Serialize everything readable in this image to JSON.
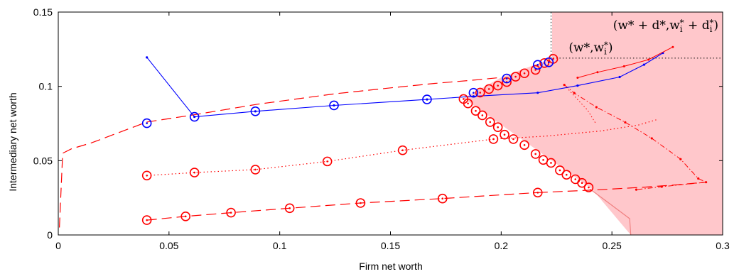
{
  "chart_data": {
    "type": "line",
    "title": "",
    "xlabel": "Firm net worth",
    "ylabel": "Intermediary net worth",
    "xlim": [
      0,
      0.3
    ],
    "ylim": [
      0,
      0.15
    ],
    "xticks": [
      0,
      0.05,
      0.1,
      0.15,
      0.2,
      0.25,
      0.3
    ],
    "yticks": [
      0,
      0.05,
      0.1,
      0.15
    ],
    "xtick_labels": [
      "0",
      "0.05",
      "0.1",
      "0.15",
      "0.2",
      "0.25",
      "0.3"
    ],
    "ytick_labels": [
      "0",
      "0.05",
      "0.1",
      "0.15"
    ],
    "grid": false,
    "legend": "none",
    "colors": {
      "red": "#ff0000",
      "blue": "#0000ff",
      "shade": "#ffc7cb",
      "black": "#000000"
    },
    "shaded_region": {
      "x": [
        0.223,
        0.3,
        0.3,
        0.2585,
        0.241,
        0.183,
        0.2,
        0.223
      ],
      "y": [
        0.15,
        0.15,
        0,
        0,
        0.031,
        0.092,
        0.106,
        0.119
      ]
    },
    "boundary_curve": {
      "x": [
        0.24,
        0.249,
        0.258,
        0.2585
      ],
      "y": [
        0.031,
        0.021,
        0.011,
        0
      ]
    },
    "dotted_guides": {
      "vertical": {
        "x": 0.2225,
        "y": [
          0.119,
          0.15
        ]
      },
      "horizontal": {
        "y": 0.119,
        "x": [
          0.222,
          0.3
        ]
      }
    },
    "dashed_upper_curve": {
      "x": [
        0.0005,
        0.002,
        0.006,
        0.015,
        0.04,
        0.062,
        0.09,
        0.125,
        0.15,
        0.17,
        0.19,
        0.2
      ],
      "y": [
        0.005,
        0.055,
        0.058,
        0.062,
        0.076,
        0.081,
        0.088,
        0.095,
        0.099,
        0.102,
        0.1045,
        0.106
      ]
    },
    "blue_circles": {
      "x": [
        0.04,
        0.0615,
        0.089,
        0.1245,
        0.1665,
        0.1875,
        0.2025,
        0.2165,
        0.2215
      ],
      "y": [
        0.0752,
        0.0795,
        0.0832,
        0.0872,
        0.0912,
        0.0957,
        0.1053,
        0.1145,
        0.1162
      ]
    },
    "blue_path": {
      "x": [
        0.04,
        0.0615,
        0.089,
        0.1245,
        0.1665,
        0.1875,
        0.2165,
        0.2345,
        0.2535,
        0.2645,
        0.273
      ],
      "y": [
        0.1195,
        0.0795,
        0.0832,
        0.0872,
        0.0912,
        0.0933,
        0.0957,
        0.1005,
        0.1063,
        0.1146,
        0.1225
      ]
    },
    "red_diagonal_circles": {
      "x": [
        0.183,
        0.185,
        0.1885,
        0.1915,
        0.195,
        0.1985,
        0.2015,
        0.2055,
        0.2105,
        0.2155,
        0.219,
        0.2225,
        0.2265,
        0.2295,
        0.2335,
        0.2365,
        0.2395
      ],
      "y": [
        0.0915,
        0.0885,
        0.0835,
        0.0805,
        0.076,
        0.0725,
        0.0675,
        0.0645,
        0.0605,
        0.0545,
        0.0505,
        0.0485,
        0.0435,
        0.0405,
        0.0375,
        0.035,
        0.032
      ]
    },
    "red_upper_circles": {
      "x": [
        0.1905,
        0.1945,
        0.1985,
        0.2025,
        0.2065,
        0.2105,
        0.2155,
        0.2195,
        0.2235
      ],
      "y": [
        0.0958,
        0.0982,
        0.1005,
        0.1029,
        0.1065,
        0.1088,
        0.1111,
        0.1157,
        0.1185
      ]
    },
    "red_dotted_series": {
      "markers": {
        "x": [
          0.04,
          0.0615,
          0.089,
          0.1215,
          0.1555,
          0.1965
        ],
        "y": [
          0.04,
          0.042,
          0.044,
          0.0495,
          0.057,
          0.0645
        ]
      },
      "tail": {
        "x": [
          0.1965,
          0.22,
          0.245,
          0.262,
          0.27
        ],
        "y": [
          0.0645,
          0.0665,
          0.07,
          0.074,
          0.0775
        ]
      }
    },
    "red_dashed_bottom_series": {
      "markers": {
        "x": [
          0.04,
          0.0575,
          0.078,
          0.1045,
          0.1365,
          0.1735,
          0.2165
        ],
        "y": [
          0.01,
          0.0125,
          0.015,
          0.018,
          0.0215,
          0.0245,
          0.0285
        ]
      },
      "tail": {
        "x": [
          0.2165,
          0.245,
          0.265,
          0.28,
          0.292
        ],
        "y": [
          0.0285,
          0.0305,
          0.0322,
          0.0338,
          0.0355
        ]
      }
    },
    "red_dashdot_path": {
      "x": [
        0.2285,
        0.233,
        0.243,
        0.256,
        0.268,
        0.281,
        0.289,
        0.2925,
        0.2725,
        0.261
      ],
      "y": [
        0.101,
        0.0955,
        0.086,
        0.0758,
        0.065,
        0.051,
        0.038,
        0.0355,
        0.0325,
        0.0305
      ]
    },
    "red_dotted_link": {
      "x": [
        0.2285,
        0.233,
        0.239,
        0.2425
      ],
      "y": [
        0.101,
        0.0935,
        0.084,
        0.0755
      ]
    },
    "red_solid_upper_path": {
      "x": [
        0.2345,
        0.2435,
        0.2555,
        0.2665,
        0.2775
      ],
      "y": [
        0.1058,
        0.1095,
        0.1135,
        0.118,
        0.1265
      ]
    },
    "annotations": [
      {
        "text": "(w*,w",
        "sub": "i",
        "sup": "*",
        "tail": ")",
        "x": 0.2305,
        "y": 0.1235
      },
      {
        "text": "(w* + d*,w",
        "sub": "i",
        "sup": "*",
        "tail": " + d",
        "sub2": "i",
        "sup2": "*",
        "tail2": ")",
        "x": 0.2505,
        "y": 0.1385
      }
    ]
  }
}
